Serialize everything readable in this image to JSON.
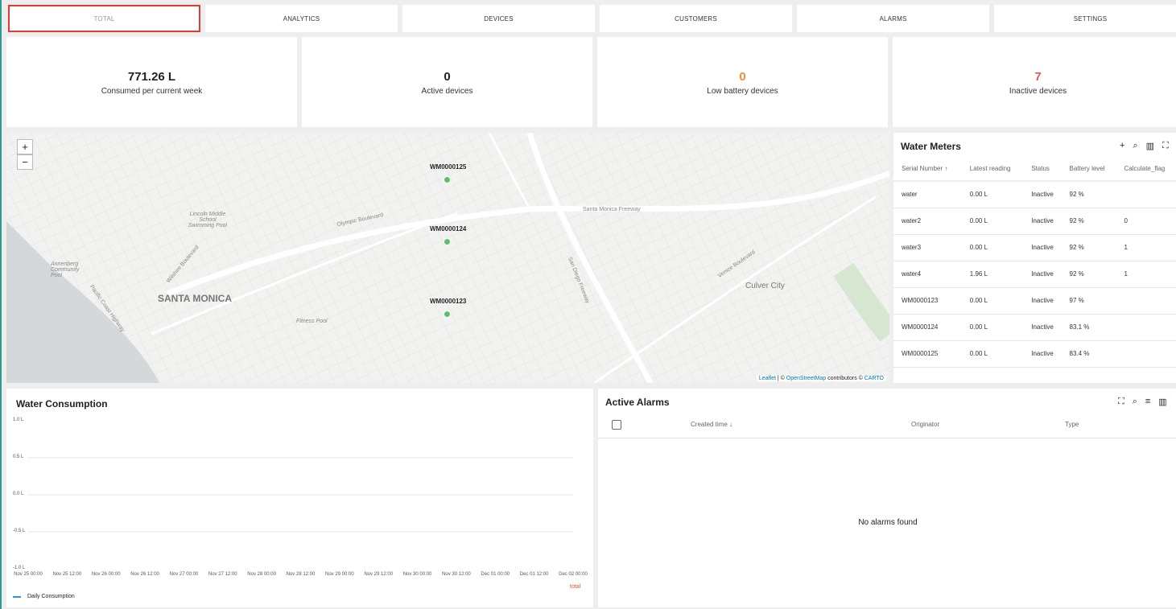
{
  "tabs": [
    "TOTAL",
    "ANALYTICS",
    "DEVICES",
    "CUSTOMERS",
    "ALARMS",
    "SETTINGS"
  ],
  "active_tab": "TOTAL",
  "cards": [
    {
      "value": "771.26 L",
      "label": "Consumed per current week",
      "color": "#222222"
    },
    {
      "value": "0",
      "label": "Active devices",
      "color": "#222222"
    },
    {
      "value": "0",
      "label": "Low battery devices",
      "color": "#f08c3a"
    },
    {
      "value": "7",
      "label": "Inactive devices",
      "color": "#e05a4f"
    }
  ],
  "map": {
    "zoom_in": "+",
    "zoom_out": "−",
    "markers": [
      "WM0000125",
      "WM0000124",
      "WM0000123"
    ],
    "places": [
      "SANTA MONICA",
      "Culver City",
      "Lincoln Middle School Swimming Pool",
      "Annenberg Community Pool",
      "Fitness Pool",
      "Santa Monica Freeway",
      "Olympic Boulevard",
      "San Diego Freeway",
      "Venice Boulevard",
      "Wilshire Boulevard",
      "Pacific Coast Highway"
    ],
    "attribution": {
      "leaflet": "Leaflet",
      "sep": " | © ",
      "osm": "OpenStreetMap",
      "contrib": " contributors © ",
      "carto": "CARTO"
    }
  },
  "water_meters": {
    "title": "Water Meters",
    "columns": [
      "Serial Number ↑",
      "Latest reading",
      "Status",
      "Battery level",
      "Calculate_flag"
    ],
    "rows": [
      [
        "water",
        "0.00 L",
        "Inactive",
        "92 %",
        ""
      ],
      [
        "water2",
        "0.00 L",
        "Inactive",
        "92 %",
        "0"
      ],
      [
        "water3",
        "0.00 L",
        "Inactive",
        "92 %",
        "1"
      ],
      [
        "water4",
        "1.96 L",
        "Inactive",
        "92 %",
        "1"
      ],
      [
        "WM0000123",
        "0.00 L",
        "Inactive",
        "97 %",
        ""
      ],
      [
        "WM0000124",
        "0.00 L",
        "Inactive",
        "83.1 %",
        ""
      ],
      [
        "WM0000125",
        "0.00 L",
        "Inactive",
        "83.4 %",
        ""
      ]
    ]
  },
  "chart_data": {
    "type": "line",
    "title": "Water Consumption",
    "ylim": [
      -1.0,
      1.0
    ],
    "yticks": [
      "1.0 L",
      "0.5 L",
      "0.0 L",
      "-0.5 L",
      "-1.0 L"
    ],
    "xticks": [
      "Nov 25 00:00",
      "Nov 25 12:00",
      "Nov 26 00:00",
      "Nov 26 12:00",
      "Nov 27 00:00",
      "Nov 27 12:00",
      "Nov 28 00:00",
      "Nov 28 12:00",
      "Nov 29 00:00",
      "Nov 29 12:00",
      "Nov 30 00:00",
      "Nov 30 12:00",
      "Dec 01 00:00",
      "Dec 01 12:00",
      "Dec 02 00:00"
    ],
    "series": [
      {
        "name": "Daily Consumption",
        "color": "#2196f3",
        "values": []
      }
    ],
    "legend": "bottom-left",
    "total_label": "total",
    "grid": true
  },
  "alarms": {
    "title": "Active Alarms",
    "columns": [
      "Created time ↓",
      "Originator",
      "Type"
    ],
    "empty": "No alarms found"
  }
}
